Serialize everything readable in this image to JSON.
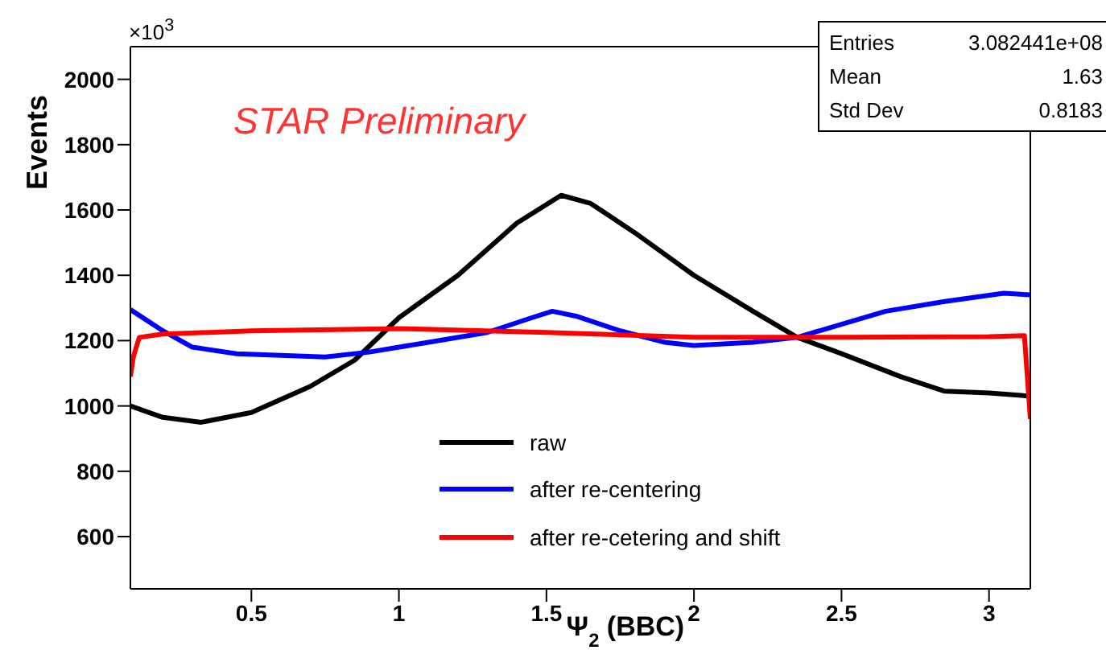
{
  "chart_data": {
    "type": "line",
    "xlabel": "Ψ$_{2}$ (BBC)",
    "ylabel": "Events",
    "annotations": [
      "×10$^{3}$",
      "STAR Preliminary",
      "Entries",
      "3.082441e+08",
      "Mean",
      "1.63",
      "Std Dev",
      "0.8183"
    ],
    "xlim": [
      0.09,
      3.14
    ],
    "xticks": [
      0.5,
      1,
      1.5,
      2,
      2.5,
      3
    ],
    "ylim": [
      440,
      2100
    ],
    "yticks": [
      600,
      800,
      1000,
      1200,
      1400,
      1600,
      1800,
      2000
    ],
    "legend": "bottom",
    "marker": "none",
    "line_style": "solid",
    "series": [
      {
        "name": "raw",
        "color": "#000000",
        "x": [
          0.09,
          0.2,
          0.33,
          0.5,
          0.7,
          0.85,
          1.0,
          1.2,
          1.4,
          1.55,
          1.65,
          1.8,
          2.0,
          2.2,
          2.35,
          2.5,
          2.7,
          2.85,
          3.0,
          3.14
        ],
        "values": [
          1000,
          965,
          950,
          980,
          1060,
          1140,
          1270,
          1400,
          1560,
          1645,
          1620,
          1530,
          1400,
          1290,
          1210,
          1160,
          1090,
          1045,
          1040,
          1030
        ]
      },
      {
        "name": "after re-centering",
        "color": "#0000ff",
        "x": [
          0.09,
          0.2,
          0.3,
          0.45,
          0.75,
          0.9,
          1.1,
          1.3,
          1.45,
          1.52,
          1.6,
          1.75,
          1.9,
          2.0,
          2.2,
          2.35,
          2.5,
          2.65,
          2.85,
          3.05,
          3.14
        ],
        "values": [
          1295,
          1230,
          1180,
          1160,
          1150,
          1165,
          1195,
          1225,
          1270,
          1290,
          1275,
          1230,
          1195,
          1185,
          1195,
          1210,
          1250,
          1290,
          1320,
          1345,
          1340
        ]
      },
      {
        "name": "after re-cetering and shift",
        "color": "#ff0000",
        "x": [
          0.09,
          0.1,
          0.12,
          0.2,
          0.5,
          1.0,
          1.5,
          2.0,
          2.5,
          3.0,
          3.12,
          3.14
        ],
        "values": [
          1090,
          1150,
          1210,
          1220,
          1230,
          1237,
          1225,
          1210,
          1210,
          1212,
          1215,
          960
        ]
      }
    ]
  }
}
